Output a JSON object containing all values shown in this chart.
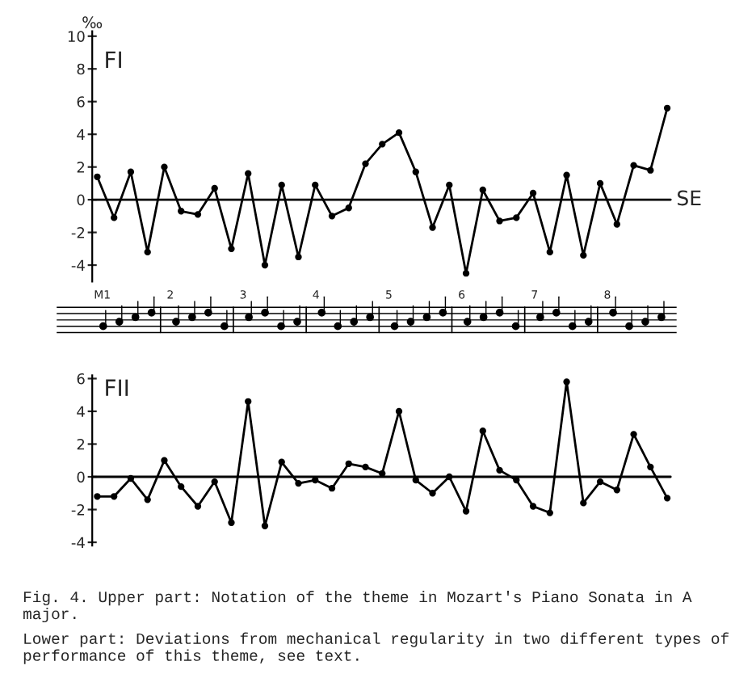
{
  "chart_data": [
    {
      "type": "line",
      "title": "FI",
      "ylabel": "‰",
      "categories": [
        null,
        null,
        null,
        null,
        null,
        null,
        null,
        null,
        null,
        null,
        null,
        null,
        null,
        null,
        null,
        null,
        null,
        null,
        null,
        null,
        null,
        null,
        null,
        null,
        null,
        null,
        null,
        null,
        null,
        null,
        null,
        null,
        null,
        null,
        null
      ],
      "series": [
        {
          "color": "#000000",
          "values": [
            1.4,
            -1.1,
            1.7,
            -3.2,
            2.0,
            -0.7,
            -0.9,
            0.7,
            -3.0,
            1.6,
            -4.0,
            0.9,
            -3.5,
            0.9,
            -1.0,
            -0.5,
            2.2,
            3.4,
            4.1,
            1.7,
            -1.7,
            0.9,
            -4.5,
            0.6,
            -1.3,
            -1.1,
            0.4,
            -3.2,
            1.5,
            -3.4,
            1.0,
            -1.5,
            2.1,
            1.8,
            5.6
          ]
        }
      ],
      "ylim": [
        -5,
        10.3
      ],
      "yticks": [
        -4,
        -2,
        0,
        2,
        4,
        6,
        8,
        10
      ],
      "ref_lines": [
        {
          "axis": "y",
          "value": 0,
          "label": "SE"
        }
      ],
      "annotations": [
        "M1",
        "2",
        "3",
        "4",
        "5",
        "6",
        "7",
        "8"
      ],
      "marker": "circle",
      "line_style": "solid",
      "grid": false,
      "legend": false,
      "tick_labels": "y"
    },
    {
      "type": "line",
      "title": "FII",
      "categories": [
        null,
        null,
        null,
        null,
        null,
        null,
        null,
        null,
        null,
        null,
        null,
        null,
        null,
        null,
        null,
        null,
        null,
        null,
        null,
        null,
        null,
        null,
        null,
        null,
        null,
        null,
        null,
        null,
        null,
        null,
        null,
        null,
        null,
        null,
        null
      ],
      "series": [
        {
          "color": "#000000",
          "values": [
            -1.2,
            -1.2,
            -0.1,
            -1.4,
            1.0,
            -0.6,
            -1.8,
            -0.3,
            -2.8,
            4.6,
            -3.0,
            0.9,
            -0.4,
            -0.2,
            -0.7,
            0.8,
            0.6,
            0.2,
            4.0,
            -0.2,
            -1.0,
            0.0,
            -2.1,
            2.8,
            0.4,
            -0.2,
            -1.8,
            -2.2,
            5.8,
            -1.6,
            -0.3,
            -0.8,
            2.6,
            0.6,
            -1.3
          ]
        }
      ],
      "ylim": [
        -4.2,
        6.2
      ],
      "yticks": [
        -4,
        -2,
        0,
        2,
        4,
        6
      ],
      "ref_lines": [
        {
          "axis": "y",
          "value": 0,
          "label": null
        }
      ],
      "annotations": [
        "Fig. 4. Upper part: Notation of the theme in Mozart's Piano Sonata in A major.",
        "Lower part: Deviations from mechanical regularity in two different types of performance of this theme, see text."
      ],
      "marker": "circle",
      "line_style": "solid",
      "grid": false,
      "legend": false,
      "tick_labels": "y"
    }
  ]
}
